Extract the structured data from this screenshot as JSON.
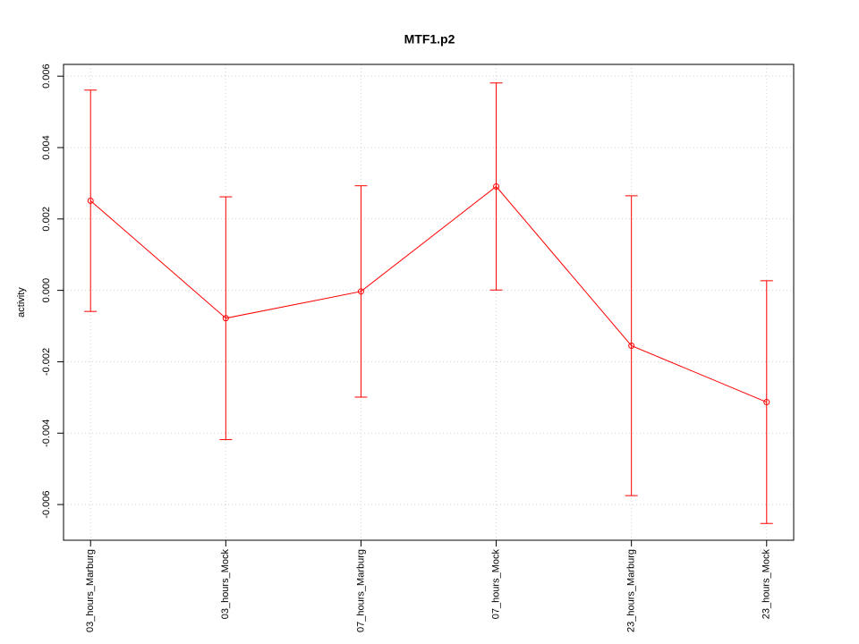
{
  "chart_data": {
    "type": "line",
    "title": "MTF1.p2",
    "y_label": "activity",
    "categories": [
      "03_hours_Marburg",
      "03_hours_Mock",
      "07_hours_Marburg",
      "07_hours_Mock",
      "23_hours_Marburg",
      "23_hours_Mock"
    ],
    "series": [
      {
        "name": "MTF1.p2",
        "color": "#ff0000",
        "values": [
          0.00251,
          -0.00078,
          -3e-05,
          0.00291,
          -0.00155,
          -0.00313
        ],
        "errors": [
          0.0031,
          0.0034,
          0.00296,
          0.0029,
          0.0042,
          0.0034
        ]
      }
    ],
    "ylim": [
      -0.007,
      0.00633
    ],
    "yticks": [
      -0.006,
      -0.004,
      -0.002,
      {
        "value": 0,
        "label": "0.000"
      },
      0.002,
      0.004,
      0.006
    ],
    "grid": true
  }
}
